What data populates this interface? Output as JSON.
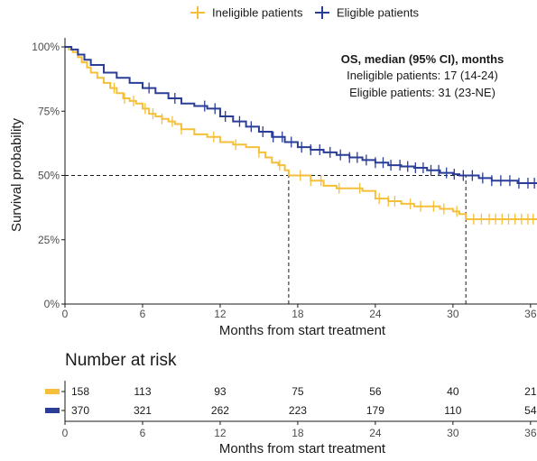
{
  "chart_data": [
    {
      "type": "line",
      "subtype": "kaplan-meier",
      "title": "",
      "xlabel": "Months from start treatment",
      "ylabel": "Survival probability",
      "xlim": [
        0,
        36.5
      ],
      "ylim": [
        0,
        1
      ],
      "x_ticks": [
        0,
        6,
        12,
        18,
        24,
        30,
        36
      ],
      "y_ticks": [
        {
          "value": 0,
          "label": "0%"
        },
        {
          "value": 0.25,
          "label": "25%"
        },
        {
          "value": 0.5,
          "label": "50%"
        },
        {
          "value": 0.75,
          "label": "75%"
        },
        {
          "value": 1,
          "label": "100%"
        }
      ],
      "grid": false,
      "legend_position": "top",
      "reference_lines": [
        {
          "kind": "horizontal",
          "y": 0.5,
          "x_from": 0,
          "x_to": 31
        },
        {
          "kind": "vertical",
          "x": 17.3,
          "y_from": 0,
          "y_to": 0.5
        },
        {
          "kind": "vertical",
          "x": 31,
          "y_from": 0,
          "y_to": 0.5
        }
      ],
      "annotation": {
        "title": "OS, median (95% CI), months",
        "lines": [
          "Ineligible patients: 17 (14-24)",
          "Eligible patients: 31 (23-NE)"
        ]
      },
      "series": [
        {
          "name": "Ineligible patients",
          "color": "#F5BF3A",
          "x": [
            0,
            0.3,
            0.6,
            1,
            1.3,
            1.7,
            2,
            2.5,
            3,
            3.5,
            4,
            4.5,
            5,
            5.5,
            6,
            6.5,
            7,
            7.5,
            8,
            8.5,
            9,
            10,
            11,
            12,
            13,
            14,
            15,
            15.5,
            16,
            16.5,
            17,
            17.3,
            18,
            19,
            20,
            21,
            22,
            23,
            24,
            25,
            26,
            27,
            28,
            29,
            30,
            30.5,
            31,
            31.5,
            32,
            33,
            34,
            35,
            36,
            36.5
          ],
          "y": [
            1.0,
            0.99,
            0.98,
            0.96,
            0.94,
            0.92,
            0.9,
            0.88,
            0.86,
            0.84,
            0.82,
            0.8,
            0.79,
            0.78,
            0.76,
            0.74,
            0.73,
            0.72,
            0.71,
            0.7,
            0.68,
            0.66,
            0.65,
            0.63,
            0.62,
            0.61,
            0.59,
            0.57,
            0.55,
            0.54,
            0.52,
            0.5,
            0.5,
            0.48,
            0.46,
            0.45,
            0.45,
            0.44,
            0.41,
            0.4,
            0.39,
            0.38,
            0.38,
            0.37,
            0.36,
            0.35,
            0.33,
            0.33,
            0.33,
            0.33,
            0.33,
            0.33,
            0.33,
            0.33
          ],
          "censor_x": [
            3.8,
            4.6,
            5.3,
            6.2,
            6.8,
            7.5,
            8.3,
            9,
            11.5,
            13.2,
            15,
            16.6,
            18.2,
            19,
            19.8,
            21.2,
            22.8,
            24.3,
            25,
            25.5,
            26.7,
            27.5,
            28.5,
            29.3,
            30.3,
            31.6,
            32.2,
            32.8,
            33.3,
            33.8,
            34.3,
            34.8,
            35.3,
            35.8,
            36.2
          ]
        },
        {
          "name": "Eligible patients",
          "color": "#2A3D97",
          "x": [
            0,
            0.5,
            1,
            1.5,
            2,
            3,
            4,
            5,
            6,
            7,
            8,
            9,
            10,
            11,
            12,
            13,
            14,
            15,
            16,
            17,
            18,
            19,
            20,
            21,
            22,
            23,
            24,
            25,
            26,
            27,
            28,
            29,
            30,
            30.5,
            31,
            32,
            33,
            34,
            35,
            36,
            36.5
          ],
          "y": [
            1.0,
            0.99,
            0.97,
            0.95,
            0.93,
            0.9,
            0.88,
            0.86,
            0.84,
            0.82,
            0.8,
            0.78,
            0.77,
            0.76,
            0.73,
            0.71,
            0.69,
            0.67,
            0.65,
            0.63,
            0.61,
            0.6,
            0.59,
            0.58,
            0.57,
            0.56,
            0.55,
            0.54,
            0.535,
            0.53,
            0.52,
            0.51,
            0.505,
            0.5,
            0.5,
            0.49,
            0.48,
            0.48,
            0.47,
            0.47,
            0.47
          ],
          "censor_x": [
            6.5,
            8.5,
            10.8,
            11.6,
            12.4,
            13.5,
            14.4,
            15.3,
            16.1,
            16.8,
            17.5,
            18.3,
            19,
            19.7,
            20.5,
            21.3,
            22,
            22.6,
            23.3,
            24,
            24.6,
            25.2,
            25.9,
            26.5,
            27.1,
            27.7,
            28.3,
            28.9,
            29.5,
            30.1,
            30.8,
            31.5,
            32.3,
            33,
            33.7,
            34.4,
            35.1,
            35.8,
            36.3
          ]
        }
      ]
    },
    {
      "type": "table",
      "title": "Number at risk",
      "xlabel": "Months from start treatment",
      "time_points": [
        0,
        6,
        12,
        18,
        24,
        30,
        36
      ],
      "rows": [
        {
          "series": "Ineligible patients",
          "color": "#F5BF3A",
          "values": [
            158,
            113,
            93,
            75,
            56,
            40,
            21
          ]
        },
        {
          "series": "Eligible patients",
          "color": "#2A3D97",
          "values": [
            370,
            321,
            262,
            223,
            179,
            110,
            54
          ]
        }
      ]
    }
  ]
}
